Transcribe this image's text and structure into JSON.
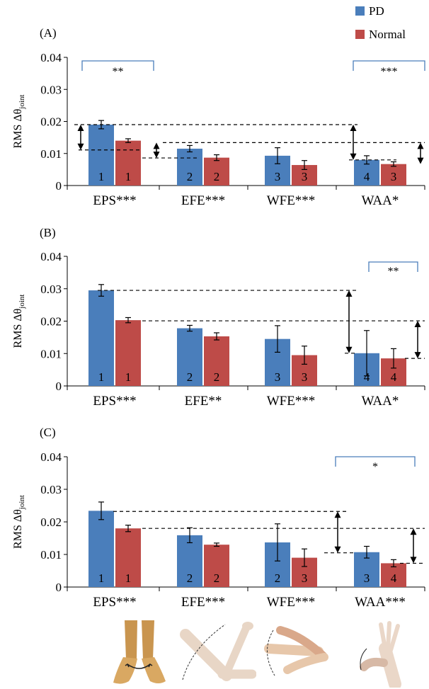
{
  "legend": [
    {
      "name": "PD",
      "color": "#4a7ebb"
    },
    {
      "name": "Normal",
      "color": "#be4b48"
    }
  ],
  "chart_data": [
    {
      "type": "bar",
      "panel_label": "(A)",
      "ylabel_main": "RMS Δθ",
      "ylabel_sub": "joint",
      "ylim": [
        0,
        0.04
      ],
      "yticks": [
        "0",
        "0.01",
        "0.02",
        "0.03",
        "0.04"
      ],
      "grid": false,
      "categories": [
        "EPS***",
        "EFE***",
        "WFE***",
        "WAA*"
      ],
      "series": [
        {
          "name": "PD",
          "values": [
            0.019,
            0.0115,
            0.0093,
            0.008
          ],
          "errors": [
            0.0013,
            0.001,
            0.0025,
            0.0013
          ],
          "ranks": [
            "1",
            "2",
            "3",
            "4"
          ]
        },
        {
          "name": "Normal",
          "values": [
            0.014,
            0.0087,
            0.0064,
            0.0067
          ],
          "errors": [
            0.0006,
            0.0009,
            0.0014,
            0.0007
          ],
          "ranks": [
            "1",
            "2",
            "3",
            "3"
          ]
        }
      ],
      "brackets": [
        {
          "from_category": 0,
          "to_category": 0,
          "text": "**"
        },
        {
          "from_category": 3,
          "to_category": 3,
          "text": "***"
        }
      ],
      "reference_lines": [
        {
          "y": 0.019,
          "from_category": 0,
          "to_category": 3
        },
        {
          "y": 0.0111,
          "from_category": 0,
          "to_category": 0
        },
        {
          "y": 0.0134,
          "from_category": 0,
          "to_category": 3
        },
        {
          "y": 0.0086,
          "from_category": 0,
          "to_category": 1
        },
        {
          "y": 0.008,
          "from_category": 3,
          "to_category": 3
        }
      ]
    },
    {
      "type": "bar",
      "panel_label": "(B)",
      "ylabel_main": "RMS Δθ",
      "ylabel_sub": "joint",
      "ylim": [
        0,
        0.04
      ],
      "yticks": [
        "0",
        "0.01",
        "0.02",
        "0.03",
        "0.04"
      ],
      "grid": false,
      "categories": [
        "EPS***",
        "EFE**",
        "WFE***",
        "WAA*"
      ],
      "series": [
        {
          "name": "PD",
          "values": [
            0.0295,
            0.0178,
            0.0145,
            0.0101
          ],
          "errors": [
            0.0018,
            0.0009,
            0.0041,
            0.007
          ],
          "ranks": [
            "1",
            "2",
            "3",
            "4"
          ]
        },
        {
          "name": "Normal",
          "values": [
            0.0203,
            0.0153,
            0.0095,
            0.0085
          ],
          "errors": [
            0.0008,
            0.0011,
            0.0028,
            0.003
          ],
          "ranks": [
            "1",
            "2",
            "3",
            "4"
          ]
        }
      ],
      "brackets": [
        {
          "from_category": 3,
          "to_category": 3,
          "text": "**"
        }
      ],
      "reference_lines": [
        {
          "y": 0.0295,
          "from_category": 0,
          "to_category": 3
        },
        {
          "y": 0.0201,
          "from_category": 0,
          "to_category": 3
        },
        {
          "y": 0.0101,
          "from_category": 3,
          "to_category": 3
        },
        {
          "y": 0.0085,
          "from_category": 3,
          "to_category": 3
        }
      ]
    },
    {
      "type": "bar",
      "panel_label": "(C)",
      "ylabel_main": "RMS Δθ",
      "ylabel_sub": "joint",
      "ylim": [
        0,
        0.04
      ],
      "yticks": [
        "0",
        "0.01",
        "0.02",
        "0.03",
        "0.04"
      ],
      "grid": false,
      "categories": [
        "EPS***",
        "EFE***",
        "WFE***",
        "WAA***"
      ],
      "series": [
        {
          "name": "PD",
          "values": [
            0.0234,
            0.0159,
            0.0137,
            0.0107
          ],
          "errors": [
            0.0027,
            0.0023,
            0.0057,
            0.0018
          ],
          "ranks": [
            "1",
            "2",
            "2",
            "3"
          ]
        },
        {
          "name": "Normal",
          "values": [
            0.018,
            0.013,
            0.009,
            0.0073
          ],
          "errors": [
            0.001,
            0.0005,
            0.0027,
            0.0011
          ],
          "ranks": [
            "1",
            "2",
            "3",
            "4"
          ]
        }
      ],
      "brackets": [
        {
          "from_category": 3,
          "to_category": 3,
          "text": "*"
        }
      ],
      "reference_lines": [
        {
          "y": 0.0232,
          "from_category": 0,
          "to_category": 2
        },
        {
          "y": 0.018,
          "from_category": 0,
          "to_category": 3
        },
        {
          "y": 0.0105,
          "from_category": 2,
          "to_category": 3
        },
        {
          "y": 0.0073,
          "from_category": 3,
          "to_category": 3
        }
      ]
    }
  ],
  "illustrations": [
    {
      "name": "forearm-pronation-supination-photo"
    },
    {
      "name": "elbow-flexion-extension-photo"
    },
    {
      "name": "wrist-flexion-extension-photo"
    },
    {
      "name": "wrist-abduction-adduction-photo"
    }
  ]
}
